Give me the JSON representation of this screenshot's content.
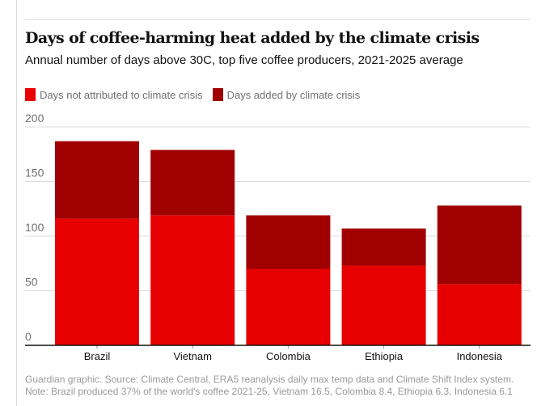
{
  "title": "Days of coffee-harming heat added by the climate crisis",
  "subtitle": "Annual number of days above 30C, top five coffee producers, 2021-2025 average",
  "legend": [
    {
      "label": "Days not attributed to climate crisis",
      "color": "#e80000"
    },
    {
      "label": "Days added by climate crisis",
      "color": "#a00000"
    }
  ],
  "source": [
    "Guardian graphic. Source: Climate Central, ERA5 reanalysis daily max temp data and Climate Shift Index system.",
    "Note: Brazil produced 37% of the world's coffee 2021-25, Vietnam 16.5, Colombia 8.4, Ethiopia 6.3, Indonesia 6.1"
  ],
  "chart_data": {
    "type": "bar",
    "stacked": true,
    "categories": [
      "Brazil",
      "Vietnam",
      "Colombia",
      "Ethiopia",
      "Indonesia"
    ],
    "series": [
      {
        "name": "Days not attributed to climate crisis",
        "values": [
          116,
          119,
          70,
          73,
          56
        ],
        "color": "#e80000"
      },
      {
        "name": "Days added by climate crisis",
        "values": [
          71,
          60,
          49,
          34,
          72
        ],
        "color": "#a00000"
      }
    ],
    "yticks": [
      0,
      50,
      100,
      150,
      200
    ],
    "ylim": [
      0,
      200
    ],
    "grid": true,
    "legend_position": "top-left"
  }
}
